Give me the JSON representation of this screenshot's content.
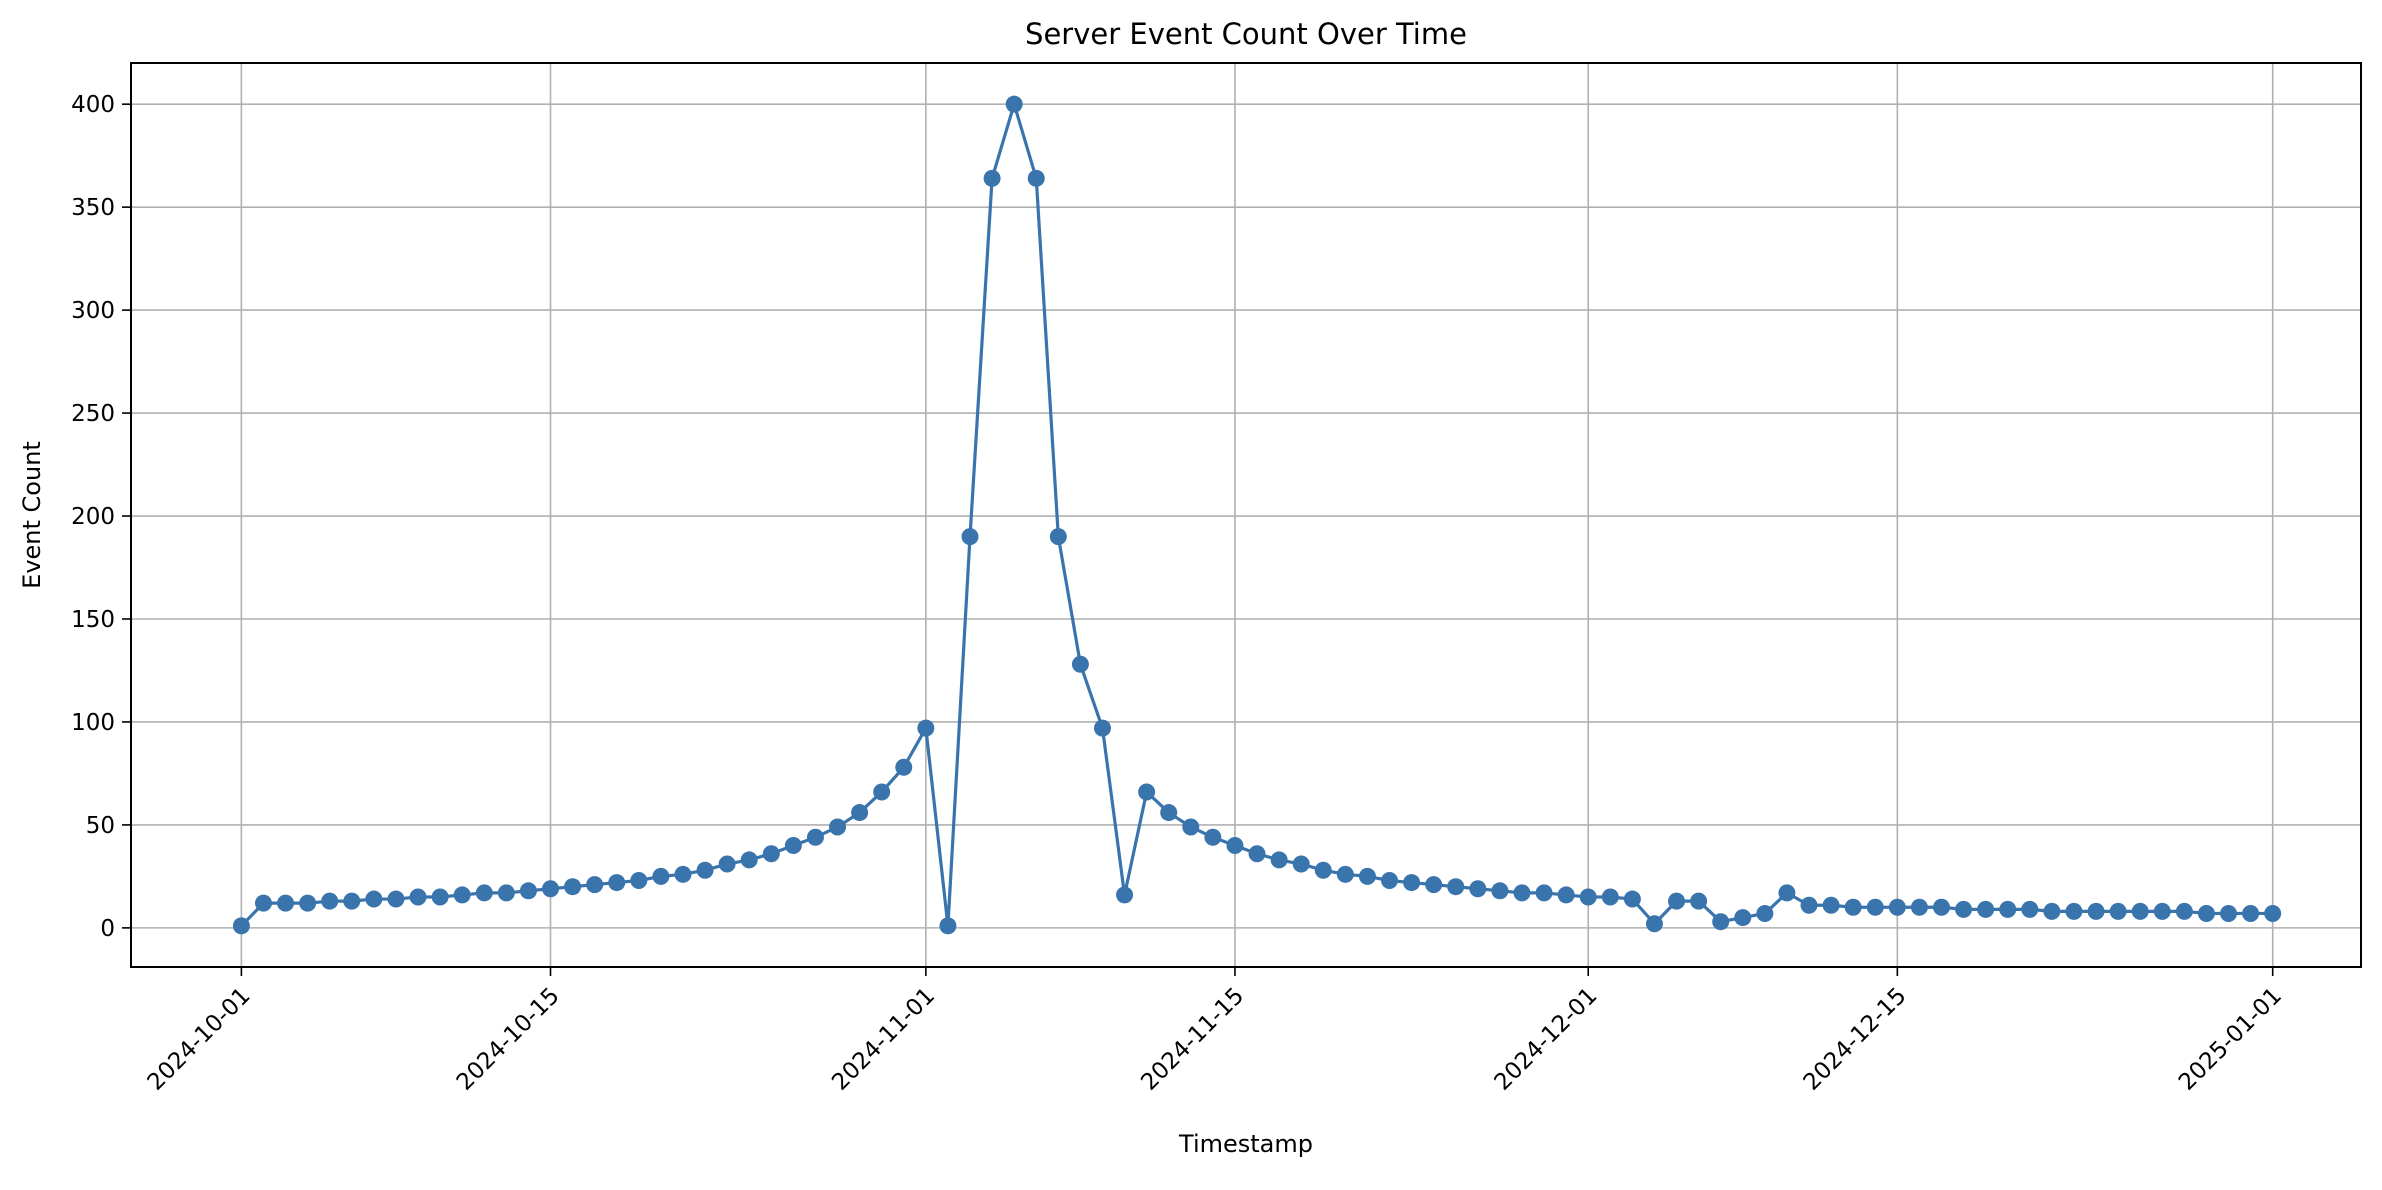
{
  "chart_data": {
    "type": "line",
    "title": "Server Event Count Over Time",
    "xlabel": "Timestamp",
    "ylabel": "Event Count",
    "x_start": "2024-10-01",
    "x_end": "2025-01-01",
    "xlim": [
      "2024-09-26",
      "2025-01-05"
    ],
    "ylim": [
      -19,
      420
    ],
    "x_ticks": [
      "2024-10-01",
      "2024-10-15",
      "2024-11-01",
      "2024-11-15",
      "2024-12-01",
      "2024-12-15",
      "2025-01-01"
    ],
    "y_ticks": [
      0,
      50,
      100,
      150,
      200,
      250,
      300,
      350,
      400
    ],
    "grid": true,
    "series": [
      {
        "color": "#3a74ad",
        "values": [
          1,
          12,
          12,
          12,
          13,
          13,
          14,
          14,
          15,
          15,
          16,
          17,
          17,
          18,
          19,
          20,
          21,
          22,
          23,
          25,
          26,
          28,
          31,
          33,
          36,
          40,
          44,
          49,
          56,
          66,
          78,
          97,
          1,
          190,
          364,
          400,
          364,
          190,
          128,
          97,
          16,
          66,
          56,
          49,
          44,
          40,
          36,
          33,
          31,
          28,
          26,
          25,
          23,
          22,
          21,
          20,
          19,
          18,
          17,
          17,
          16,
          15,
          15,
          14,
          2,
          13,
          13,
          3,
          5,
          7,
          17,
          11,
          11,
          10,
          10,
          10,
          10,
          10,
          9,
          9,
          9,
          9,
          8,
          8,
          8,
          8,
          8,
          8,
          8,
          7,
          7,
          7,
          7
        ]
      }
    ]
  }
}
